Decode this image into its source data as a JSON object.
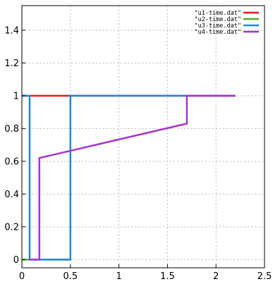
{
  "chart_data": {
    "type": "line",
    "title": "",
    "xlabel": "",
    "ylabel": "",
    "xlim": [
      0,
      2.5
    ],
    "ylim": [
      -0.05,
      1.55
    ],
    "x_ticks": [
      "0",
      "0.5",
      "1",
      "1.5",
      "2",
      "2.5"
    ],
    "x_tick_values": [
      0,
      0.5,
      1,
      1.5,
      2,
      2.5
    ],
    "y_ticks": [
      "0",
      "0.2",
      "0.4",
      "0.6",
      "0.8",
      "1",
      "1.2",
      "1.4"
    ],
    "y_tick_values": [
      0,
      0.2,
      0.4,
      0.6,
      0.8,
      1.0,
      1.2,
      1.4
    ],
    "grid": true,
    "legend_position": "top-right",
    "series": [
      {
        "name": "\"u1-time.dat\"",
        "color": "#e41a1c",
        "x": [
          0,
          2.2
        ],
        "y": [
          1,
          1
        ]
      },
      {
        "name": "\"u2-time.dat\"",
        "color": "#4daf26",
        "x": [
          0,
          0.5
        ],
        "y": [
          0,
          0
        ]
      },
      {
        "name": "\"u3-time.dat\"",
        "color": "#1f8ad6",
        "x": [
          0,
          0.08,
          0.08,
          0.5,
          0.5,
          2.2
        ],
        "y": [
          1,
          1,
          0,
          0,
          1,
          1
        ]
      },
      {
        "name": "\"u4-time.dat\"",
        "color": "#a832cf",
        "x": [
          0.08,
          0.18,
          0.18,
          1.7,
          1.7,
          2.2
        ],
        "y": [
          0,
          0,
          0.62,
          0.83,
          1,
          1
        ]
      }
    ]
  }
}
